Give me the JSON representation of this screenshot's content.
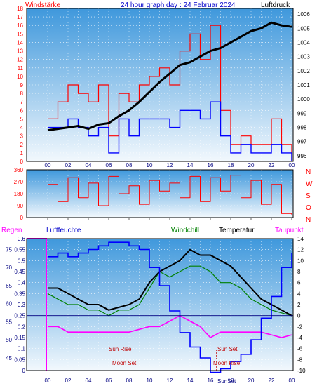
{
  "header": {
    "left_label": "Windstärke",
    "title": "24 hour graph day : 24 Februar 2024",
    "right_label": "Luftdruck"
  },
  "colors": {
    "background": "#ffffff",
    "plot_top": "#3f98dc",
    "plot_bottom": "#f2f8fd",
    "grid": "#ffffff",
    "wind": "#ff0000",
    "wind_beaufort": "#0000ff",
    "pressure": "#000000",
    "direction": "#ff0000",
    "humidity": "#0000ff",
    "windchill": "#008000",
    "temperature": "#000000",
    "dewpoint": "#ff00ff",
    "rain": "#ff00ff",
    "axis_text": "#000080",
    "sun_text": "#c00000"
  },
  "hour_ticks": [
    "00",
    "02",
    "04",
    "06",
    "08",
    "10",
    "12",
    "14",
    "16",
    "18",
    "20",
    "22",
    "00"
  ],
  "panel2_labels": [
    "N",
    "W",
    "S",
    "O",
    "N"
  ],
  "panel3_header": {
    "rain": "Regen",
    "humidity": "Luftfeuchte",
    "windchill": "Windchill",
    "temperature": "Temperatur",
    "dewpoint": "Taupunkt"
  },
  "astro": {
    "sun_rise": "Sun Rise",
    "sun_set": "Sun Set",
    "moon_set": "Moon Set",
    "moon_rise": "Moon Rise",
    "sun_set_axis": "SunSet"
  },
  "chart_data": [
    {
      "type": "line",
      "title": "24 hour graph day : 24 Februar 2024",
      "x_ticks": [
        "00",
        "02",
        "04",
        "06",
        "08",
        "10",
        "12",
        "14",
        "16",
        "18",
        "20",
        "22",
        "00"
      ],
      "y_left_ticks": [
        "0",
        "1",
        "2",
        "3",
        "4",
        "5",
        "6",
        "7",
        "8",
        "9",
        "10",
        "11",
        "12",
        "13",
        "14",
        "15",
        "16",
        "17",
        "18"
      ],
      "y_left_ylim": [
        0,
        18
      ],
      "y_right_ticks": [
        "996",
        "997",
        "998",
        "999",
        "1000",
        "1001",
        "1002",
        "1003",
        "1004",
        "1005",
        "1006"
      ],
      "y_right_ylim": [
        995.6,
        1006.4
      ],
      "series": [
        {
          "name": "Windstärke",
          "axis": "left",
          "x": [
            0,
            1,
            2,
            3,
            4,
            5,
            6,
            7,
            8,
            9,
            10,
            11,
            12,
            13,
            14,
            15,
            16,
            17,
            18,
            19,
            20,
            21,
            22,
            23,
            24
          ],
          "values": [
            5,
            7,
            9,
            8,
            7,
            9,
            3,
            8,
            7,
            9,
            10,
            11,
            9,
            13,
            15,
            12,
            16,
            6,
            2,
            3,
            2,
            2,
            5,
            2,
            0
          ]
        },
        {
          "name": "Beaufort",
          "axis": "left",
          "x": [
            0,
            1,
            2,
            3,
            4,
            5,
            6,
            7,
            8,
            9,
            10,
            11,
            12,
            13,
            14,
            15,
            16,
            17,
            18,
            19,
            20,
            21,
            22,
            23,
            24
          ],
          "values": [
            4,
            4,
            5,
            4,
            3,
            4,
            1,
            5,
            3,
            5,
            5,
            5,
            4,
            6,
            6,
            5,
            7,
            3,
            1,
            2,
            1,
            1,
            2,
            1,
            0
          ]
        },
        {
          "name": "Luftdruck",
          "axis": "right",
          "x": [
            0,
            1,
            2,
            3,
            4,
            5,
            6,
            7,
            8,
            9,
            10,
            11,
            12,
            13,
            14,
            15,
            16,
            17,
            18,
            19,
            20,
            21,
            22,
            23,
            24
          ],
          "values": [
            997.8,
            997.9,
            998.0,
            998.1,
            997.9,
            998.2,
            998.3,
            998.8,
            999.2,
            999.8,
            1000.5,
            1001.2,
            1001.8,
            1002.4,
            1002.6,
            1003.0,
            1003.4,
            1003.6,
            1004.0,
            1004.4,
            1004.8,
            1005.0,
            1005.4,
            1005.2,
            1005.1
          ]
        }
      ]
    },
    {
      "type": "line",
      "x_ticks": [
        "00",
        "02",
        "04",
        "06",
        "08",
        "10",
        "12",
        "14",
        "16",
        "18",
        "20",
        "22",
        "00"
      ],
      "y_ticks": [
        "0",
        "90",
        "180",
        "270",
        "360"
      ],
      "y_right_labels": [
        "N",
        "W",
        "S",
        "O",
        "N"
      ],
      "ylim": [
        0,
        360
      ],
      "series": [
        {
          "name": "Windrichtung",
          "x": [
            0,
            1,
            2,
            3,
            4,
            5,
            6,
            7,
            8,
            9,
            10,
            11,
            12,
            13,
            14,
            15,
            16,
            17,
            18,
            19,
            20,
            21,
            22,
            23,
            24
          ],
          "values": [
            250,
            120,
            300,
            150,
            260,
            90,
            310,
            180,
            240,
            100,
            280,
            200,
            260,
            150,
            310,
            120,
            300,
            200,
            320,
            150,
            280,
            100,
            250,
            30,
            20
          ]
        }
      ]
    },
    {
      "type": "line",
      "x_ticks": [
        "00",
        "02",
        "04",
        "06",
        "08",
        "10",
        "12",
        "14",
        "16",
        "18",
        "20",
        "22",
        "00"
      ],
      "y_left_ticks": [
        "45",
        "50",
        "55",
        "60",
        "65",
        "70",
        "75"
      ],
      "y_left_ylim": [
        41.5,
        78
      ],
      "y_rain_ticks": [
        "0",
        "0.05",
        "0.1",
        "0.15",
        "0.2",
        "0.25",
        "0.3",
        "0.35",
        "0.4",
        "0.45",
        "0.5",
        "0.55",
        "0.6"
      ],
      "y_rain_ylim": [
        0,
        0.6
      ],
      "y_right_ticks": [
        "-10",
        "-8",
        "-6",
        "-4",
        "-2",
        "0",
        "2",
        "4",
        "6",
        "8",
        "10",
        "12",
        "14"
      ],
      "y_right_ylim": [
        -10,
        14
      ],
      "series": [
        {
          "name": "Luftfeuchte",
          "axis": "left",
          "x": [
            0,
            1,
            2,
            3,
            4,
            5,
            6,
            7,
            8,
            9,
            10,
            11,
            12,
            13,
            14,
            15,
            16,
            17,
            18,
            19,
            20,
            21,
            22,
            23,
            24
          ],
          "values": [
            73,
            74,
            73,
            74,
            75,
            76,
            77,
            77,
            76,
            75,
            70,
            65,
            58,
            52,
            48,
            45,
            41,
            42,
            44,
            46,
            50,
            56,
            62,
            70,
            74
          ]
        },
        {
          "name": "Windchill",
          "axis": "right",
          "x": [
            0,
            1,
            2,
            3,
            4,
            5,
            6,
            7,
            8,
            9,
            10,
            11,
            12,
            13,
            14,
            15,
            16,
            17,
            18,
            19,
            20,
            21,
            22,
            23,
            24
          ],
          "values": [
            4,
            3,
            2,
            2,
            1,
            1,
            0,
            1,
            1,
            2,
            5,
            8,
            7,
            8,
            9,
            9,
            8,
            6,
            6,
            5,
            3,
            2,
            1,
            0.5,
            0
          ]
        },
        {
          "name": "Temperatur",
          "axis": "right",
          "x": [
            0,
            1,
            2,
            3,
            4,
            5,
            6,
            7,
            8,
            9,
            10,
            11,
            12,
            13,
            14,
            15,
            16,
            17,
            18,
            19,
            20,
            21,
            22,
            23,
            24
          ],
          "values": [
            5,
            5,
            4,
            3,
            2,
            2,
            1,
            1.5,
            2,
            3,
            6,
            8,
            9,
            10,
            12,
            11,
            11,
            10,
            9,
            7,
            5,
            3,
            2,
            1,
            0
          ]
        },
        {
          "name": "Taupunkt",
          "axis": "right",
          "x": [
            0,
            1,
            2,
            3,
            4,
            5,
            6,
            7,
            8,
            9,
            10,
            11,
            12,
            13,
            14,
            15,
            16,
            17,
            18,
            19,
            20,
            21,
            22,
            23,
            24
          ],
          "values": [
            -2,
            -2,
            -3,
            -3,
            -3,
            -3,
            -3,
            -3,
            -3,
            -2.5,
            -2,
            -2,
            -1,
            0,
            -1,
            -2,
            -4,
            -3,
            -3,
            -3,
            -3,
            -3,
            -3.5,
            -4,
            -3.5
          ]
        },
        {
          "name": "Regen",
          "axis": "rain",
          "x": [
            0,
            1,
            2,
            3,
            4,
            5,
            6,
            7,
            8,
            9,
            10,
            11,
            12,
            13,
            14,
            15,
            16,
            17,
            18,
            19,
            20,
            21,
            22,
            23,
            24
          ],
          "values": [
            0.6,
            0,
            0,
            0,
            0,
            0,
            0,
            0,
            0,
            0,
            0,
            0,
            0,
            0,
            0,
            0,
            0,
            0,
            0,
            0,
            0,
            0,
            0,
            0,
            0
          ]
        }
      ]
    }
  ]
}
